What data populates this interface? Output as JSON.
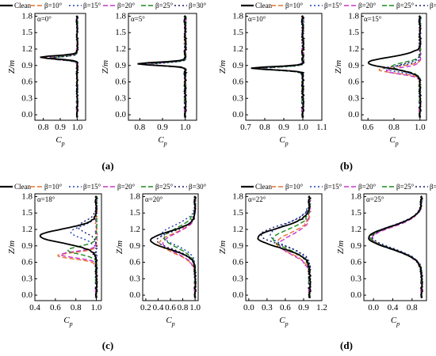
{
  "figure": {
    "legend_entries": [
      "Clean",
      "β=10°",
      "β=15°",
      "β=20°",
      "β=25°",
      "β=30°"
    ],
    "series_colors": [
      "#000000",
      "#e8722c",
      "#1f3fb5",
      "#cc33cc",
      "#1a8a1a",
      "#15186b"
    ],
    "series_dash": [
      "none",
      "6,3",
      "2,3",
      "6,3",
      "6,3",
      "2,3"
    ]
  },
  "chart_data": [
    {
      "type": "line",
      "panel_label": "(a)",
      "alpha_label": "α=0°",
      "ylabel": "Z/m",
      "xlabel": "C",
      "xlabel_sub": "p",
      "xlim": [
        0.75,
        1.05
      ],
      "xticks": [
        0.8,
        0.9,
        1.0
      ],
      "ylim": [
        -0.1,
        1.85
      ],
      "yticks": [
        0.0,
        0.3,
        0.6,
        0.9,
        1.2,
        1.5,
        1.8
      ],
      "series": [
        {
          "name": "Clean",
          "profile": {
            "min": 0.78,
            "center": 1.05,
            "width": 0.04
          }
        },
        {
          "name": "β=10°",
          "profile": {
            "min": 0.8,
            "center": 1.04,
            "width": 0.04
          }
        },
        {
          "name": "β=15°",
          "profile": {
            "min": 0.82,
            "center": 1.04,
            "width": 0.04
          }
        },
        {
          "name": "β=20°",
          "profile": {
            "min": 0.83,
            "center": 1.03,
            "width": 0.04
          }
        },
        {
          "name": "β=25°",
          "profile": {
            "min": 0.84,
            "center": 1.03,
            "width": 0.04
          }
        },
        {
          "name": "β=30°",
          "profile": {
            "min": 0.85,
            "center": 1.03,
            "width": 0.04
          }
        }
      ]
    },
    {
      "type": "line",
      "alpha_label": "α=5°",
      "ylabel": "Z/m",
      "xlabel": "C",
      "xlabel_sub": "p",
      "xlim": [
        0.75,
        1.05
      ],
      "xticks": [
        0.8,
        0.9,
        1.0
      ],
      "ylim": [
        -0.1,
        1.85
      ],
      "yticks": [
        0.0,
        0.3,
        0.6,
        0.9,
        1.2,
        1.5,
        1.8
      ],
      "series": [
        {
          "name": "Clean",
          "profile": {
            "min": 0.79,
            "center": 0.93,
            "width": 0.04
          }
        },
        {
          "name": "β=10°",
          "profile": {
            "min": 0.8,
            "center": 0.93,
            "width": 0.04
          }
        },
        {
          "name": "β=15°",
          "profile": {
            "min": 0.82,
            "center": 0.93,
            "width": 0.04
          }
        },
        {
          "name": "β=20°",
          "profile": {
            "min": 0.83,
            "center": 0.92,
            "width": 0.04
          }
        },
        {
          "name": "β=25°",
          "profile": {
            "min": 0.84,
            "center": 0.92,
            "width": 0.04
          }
        },
        {
          "name": "β=30°",
          "profile": {
            "min": 0.85,
            "center": 0.92,
            "width": 0.04
          }
        }
      ]
    },
    {
      "type": "line",
      "panel_label": "(b)",
      "alpha_label": "α=10°",
      "ylabel": "Z/m",
      "xlabel": "C",
      "xlabel_sub": "p",
      "xlim": [
        0.7,
        1.1
      ],
      "xticks": [
        0.7,
        0.8,
        0.9,
        1.0,
        1.1
      ],
      "ylim": [
        -0.1,
        1.85
      ],
      "yticks": [
        0.0,
        0.3,
        0.6,
        0.9,
        1.2,
        1.5,
        1.8
      ],
      "series": [
        {
          "name": "Clean",
          "profile": {
            "min": 0.73,
            "center": 0.85,
            "width": 0.04
          }
        },
        {
          "name": "β=10°",
          "profile": {
            "min": 0.74,
            "center": 0.85,
            "width": 0.04
          }
        },
        {
          "name": "β=15°",
          "profile": {
            "min": 0.75,
            "center": 0.85,
            "width": 0.04
          }
        },
        {
          "name": "β=20°",
          "profile": {
            "min": 0.76,
            "center": 0.85,
            "width": 0.04
          }
        },
        {
          "name": "β=25°",
          "profile": {
            "min": 0.77,
            "center": 0.84,
            "width": 0.04
          }
        },
        {
          "name": "β=30°",
          "profile": {
            "min": 0.78,
            "center": 0.84,
            "width": 0.04
          }
        }
      ]
    },
    {
      "type": "line",
      "alpha_label": "α=15°",
      "ylabel": "Z/m",
      "xlabel": "C",
      "xlabel_sub": "p",
      "xlim": [
        0.55,
        1.05
      ],
      "xticks": [
        0.6,
        0.8,
        1.0
      ],
      "ylim": [
        -0.1,
        1.85
      ],
      "yticks": [
        0.0,
        0.3,
        0.6,
        0.9,
        1.2,
        1.5,
        1.8
      ],
      "series": [
        {
          "name": "Clean",
          "profile": {
            "min": 0.6,
            "center": 0.95,
            "width": 0.14
          }
        },
        {
          "name": "β=10°",
          "profile": {
            "min": 0.68,
            "center": 0.82,
            "width": 0.08
          }
        },
        {
          "name": "β=15°",
          "profile": {
            "min": 0.72,
            "center": 0.84,
            "width": 0.08
          }
        },
        {
          "name": "β=20°",
          "profile": {
            "min": 0.74,
            "center": 0.8,
            "width": 0.08
          }
        },
        {
          "name": "β=25°",
          "profile": {
            "min": 0.78,
            "center": 0.88,
            "width": 0.1
          }
        },
        {
          "name": "β=30°",
          "profile": {
            "min": 0.8,
            "center": 0.86,
            "width": 0.1
          }
        }
      ]
    },
    {
      "type": "line",
      "panel_label": "(c)",
      "alpha_label": "α=18°",
      "ylabel": "Z/m",
      "xlabel": "C",
      "xlabel_sub": "p",
      "xlim": [
        0.4,
        1.05
      ],
      "xticks": [
        0.4,
        0.6,
        0.8,
        1.0
      ],
      "ylim": [
        -0.1,
        1.85
      ],
      "yticks": [
        0.0,
        0.3,
        0.6,
        0.9,
        1.2,
        1.5,
        1.8
      ],
      "series": [
        {
          "name": "Clean",
          "profile": {
            "min": 0.45,
            "center": 1.08,
            "width": 0.18
          }
        },
        {
          "name": "β=10°",
          "profile": {
            "min": 0.62,
            "center": 0.72,
            "width": 0.08
          }
        },
        {
          "name": "β=15°",
          "profile": {
            "min": 0.75,
            "center": 1.15,
            "width": 0.15
          }
        },
        {
          "name": "β=20°",
          "profile": {
            "min": 0.65,
            "center": 0.74,
            "width": 0.08
          }
        },
        {
          "name": "β=25°",
          "profile": {
            "min": 0.72,
            "center": 0.82,
            "width": 0.1
          }
        },
        {
          "name": "β=30°",
          "profile": {
            "min": 0.82,
            "center": 1.25,
            "width": 0.15
          }
        }
      ]
    },
    {
      "type": "line",
      "alpha_label": "α=20°",
      "ylabel": "Z/m",
      "xlabel": "C",
      "xlabel_sub": "p",
      "xlim": [
        0.15,
        1.05
      ],
      "xticks": [
        0.2,
        0.4,
        0.6,
        0.8,
        1.0
      ],
      "ylim": [
        -0.1,
        1.85
      ],
      "yticks": [
        0.0,
        0.3,
        0.6,
        0.9,
        1.2,
        1.5,
        1.8
      ],
      "series": [
        {
          "name": "Clean",
          "profile": {
            "min": 0.28,
            "center": 1.0,
            "width": 0.22
          }
        },
        {
          "name": "β=10°",
          "profile": {
            "min": 0.42,
            "center": 0.95,
            "width": 0.25
          }
        },
        {
          "name": "β=15°",
          "profile": {
            "min": 0.45,
            "center": 1.1,
            "width": 0.25
          }
        },
        {
          "name": "β=20°",
          "profile": {
            "min": 0.48,
            "center": 0.95,
            "width": 0.25
          }
        },
        {
          "name": "β=25°",
          "profile": {
            "min": 0.5,
            "center": 1.05,
            "width": 0.25
          }
        },
        {
          "name": "β=30°",
          "profile": {
            "min": 0.38,
            "center": 1.0,
            "width": 0.22
          }
        }
      ]
    },
    {
      "type": "line",
      "panel_label": "(d)",
      "alpha_label": "α=22°",
      "ylabel": "Z/m",
      "xlabel": "C",
      "xlabel_sub": "p",
      "xlim": [
        -0.05,
        1.2
      ],
      "xticks": [
        0.0,
        0.3,
        0.6,
        0.9,
        1.2
      ],
      "ylim": [
        -0.1,
        1.85
      ],
      "yticks": [
        0.0,
        0.3,
        0.6,
        0.9,
        1.2,
        1.5,
        1.8
      ],
      "series": [
        {
          "name": "Clean",
          "profile": {
            "min": 0.15,
            "center": 1.05,
            "width": 0.25
          }
        },
        {
          "name": "β=10°",
          "profile": {
            "min": 0.45,
            "center": 0.95,
            "width": 0.25
          }
        },
        {
          "name": "β=15°",
          "profile": {
            "min": 0.35,
            "center": 1.1,
            "width": 0.28
          }
        },
        {
          "name": "β=20°",
          "profile": {
            "min": 0.5,
            "center": 0.92,
            "width": 0.25
          }
        },
        {
          "name": "β=25°",
          "profile": {
            "min": 0.4,
            "center": 1.02,
            "width": 0.25
          }
        },
        {
          "name": "β=30°",
          "profile": {
            "min": 0.2,
            "center": 1.1,
            "width": 0.25
          }
        }
      ]
    },
    {
      "type": "line",
      "alpha_label": "α=25°",
      "ylabel": "Z/m",
      "xlabel": "C",
      "xlabel_sub": "p",
      "xlim": [
        -0.2,
        1.1
      ],
      "xticks": [
        0.0,
        0.4,
        0.8
      ],
      "ylim": [
        -0.1,
        1.85
      ],
      "yticks": [
        0.0,
        0.3,
        0.6,
        0.9,
        1.2,
        1.5,
        1.8
      ],
      "series": [
        {
          "name": "Clean",
          "profile": {
            "min": -0.1,
            "center": 1.05,
            "width": 0.28
          }
        },
        {
          "name": "β=10°",
          "profile": {
            "min": -0.05,
            "center": 1.05,
            "width": 0.28
          }
        },
        {
          "name": "β=15°",
          "profile": {
            "min": -0.08,
            "center": 1.06,
            "width": 0.28
          }
        },
        {
          "name": "β=20°",
          "profile": {
            "min": -0.03,
            "center": 1.04,
            "width": 0.28
          }
        },
        {
          "name": "β=25°",
          "profile": {
            "min": -0.06,
            "center": 1.05,
            "width": 0.28
          }
        },
        {
          "name": "β=30°",
          "profile": {
            "min": -0.02,
            "center": 1.06,
            "width": 0.28
          }
        }
      ]
    }
  ]
}
